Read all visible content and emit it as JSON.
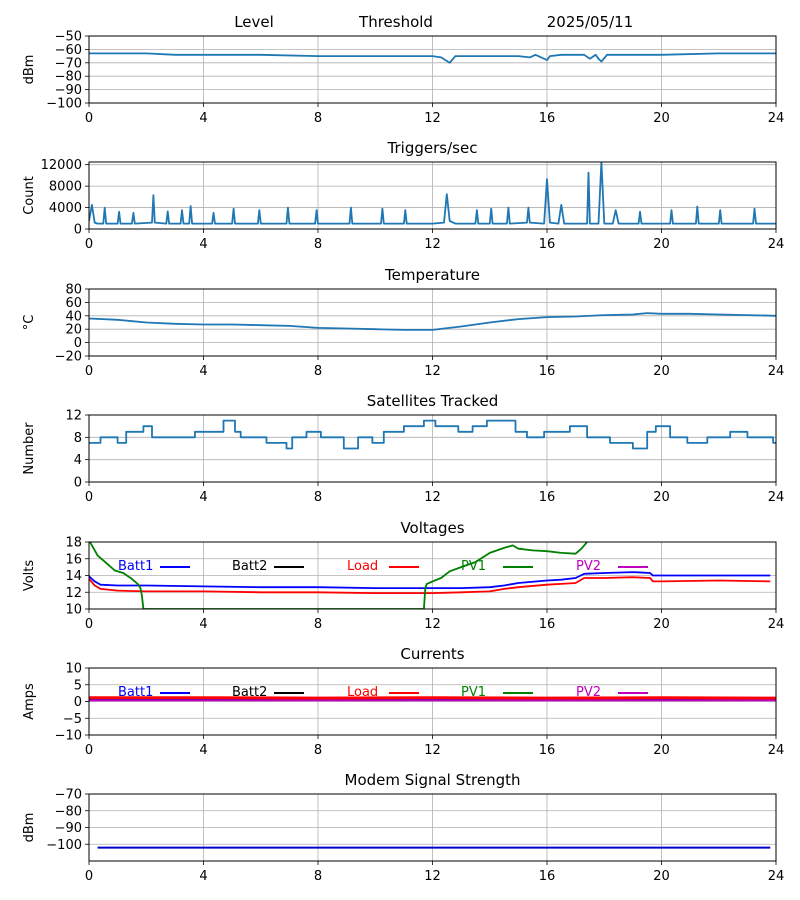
{
  "figure": {
    "header": {
      "left": "Level",
      "middle": "Threshold",
      "right": "2025/05/11"
    }
  },
  "chart_data": [
    {
      "id": "level",
      "type": "line",
      "title": "",
      "xlabel": "",
      "ylabel": "dBm",
      "xlim": [
        0,
        24
      ],
      "ylim": [
        -100,
        -50
      ],
      "xticks": [
        "0",
        "4",
        "8",
        "12",
        "16",
        "20",
        "24"
      ],
      "yticks": [
        "−100",
        "−90",
        "−80",
        "−70",
        "−60",
        "−50"
      ],
      "grid": true,
      "series": [
        {
          "color": "#1f77b4",
          "x": [
            0.0,
            1.0,
            2.0,
            3.0,
            4.0,
            6.0,
            8.0,
            10.0,
            12.0,
            12.3,
            12.6,
            12.8,
            13.5,
            15.0,
            15.4,
            15.6,
            16.0,
            16.1,
            16.5,
            17.0,
            17.3,
            17.5,
            17.7,
            17.8,
            17.9,
            18.1,
            18.5,
            20.0,
            22.0,
            24.0
          ],
          "y": [
            -63,
            -63,
            -63,
            -64,
            -64,
            -64,
            -65,
            -65,
            -65,
            -66,
            -70,
            -65,
            -65,
            -65,
            -66,
            -64,
            -68,
            -65,
            -64,
            -64,
            -64,
            -67,
            -64,
            -67,
            -69,
            -64,
            -64,
            -64,
            -63,
            -63
          ]
        }
      ]
    },
    {
      "id": "triggers",
      "type": "line",
      "title": "Triggers/sec",
      "xlabel": "",
      "ylabel": "Count",
      "xlim": [
        0,
        24
      ],
      "ylim": [
        0,
        12500
      ],
      "xticks": [
        "0",
        "4",
        "8",
        "12",
        "16",
        "20",
        "24"
      ],
      "yticks": [
        "0",
        "4000",
        "8000",
        "12000"
      ],
      "grid": true,
      "series": [
        {
          "color": "#1f77b4",
          "x": [
            0.0,
            0.1,
            0.2,
            0.3,
            0.5,
            0.55,
            0.6,
            1.0,
            1.05,
            1.1,
            1.5,
            1.55,
            1.6,
            2.2,
            2.25,
            2.3,
            2.7,
            2.75,
            2.8,
            3.2,
            3.25,
            3.3,
            3.5,
            3.55,
            3.6,
            4.3,
            4.35,
            4.4,
            5.0,
            5.05,
            5.1,
            5.9,
            5.95,
            6.0,
            6.9,
            6.95,
            7.0,
            7.9,
            7.95,
            8.0,
            9.1,
            9.15,
            9.2,
            10.2,
            10.25,
            10.3,
            11.0,
            11.05,
            11.1,
            12.0,
            12.4,
            12.5,
            12.6,
            12.8,
            13.0,
            13.5,
            13.55,
            13.6,
            14.0,
            14.05,
            14.1,
            14.6,
            14.65,
            14.7,
            15.3,
            15.35,
            15.4,
            15.9,
            16.0,
            16.1,
            16.4,
            16.5,
            16.6,
            17.4,
            17.45,
            17.5,
            17.8,
            17.9,
            18.0,
            18.3,
            18.4,
            18.5,
            19.2,
            19.25,
            19.3,
            20.3,
            20.35,
            20.4,
            21.2,
            21.25,
            21.3,
            22.0,
            22.05,
            22.1,
            23.2,
            23.25,
            23.3,
            24.0
          ],
          "y": [
            1500,
            4500,
            1200,
            1000,
            1000,
            4000,
            1000,
            1000,
            3200,
            1000,
            1000,
            3000,
            1000,
            1200,
            6300,
            1200,
            1000,
            3300,
            1000,
            1000,
            3500,
            1000,
            1000,
            4300,
            1000,
            1000,
            3000,
            1000,
            1000,
            3800,
            1000,
            1000,
            3500,
            1000,
            1000,
            4000,
            1000,
            1000,
            3500,
            1000,
            1000,
            4000,
            1000,
            1000,
            3800,
            1000,
            1000,
            3500,
            1000,
            1000,
            1200,
            6500,
            1500,
            1000,
            1000,
            1000,
            3500,
            1000,
            1000,
            3800,
            1000,
            1000,
            4000,
            1000,
            1200,
            4000,
            1200,
            1000,
            9300,
            1200,
            1000,
            4500,
            1000,
            1000,
            10500,
            1000,
            1000,
            12500,
            1000,
            1000,
            3500,
            1000,
            1000,
            3200,
            1000,
            1000,
            3500,
            1000,
            1000,
            4200,
            1000,
            1000,
            3500,
            1000,
            1000,
            3800,
            1000,
            1000
          ]
        }
      ]
    },
    {
      "id": "temperature",
      "type": "line",
      "title": "Temperature",
      "xlabel": "",
      "ylabel": "°C",
      "xlim": [
        0,
        24
      ],
      "ylim": [
        -20,
        80
      ],
      "xticks": [
        "0",
        "4",
        "8",
        "12",
        "16",
        "20",
        "24"
      ],
      "yticks": [
        "−20",
        "0",
        "20",
        "40",
        "60",
        "80"
      ],
      "grid": true,
      "series": [
        {
          "color": "#1f77b4",
          "x": [
            0.0,
            1.0,
            2.0,
            3.0,
            4.0,
            5.0,
            6.0,
            7.0,
            8.0,
            9.0,
            10.0,
            11.0,
            12.0,
            13.0,
            14.0,
            15.0,
            16.0,
            17.0,
            18.0,
            19.0,
            19.5,
            20.0,
            21.0,
            22.0,
            23.0,
            24.0
          ],
          "y": [
            36,
            34,
            30,
            28,
            27,
            27,
            26,
            25,
            22,
            21,
            20,
            19,
            19,
            24,
            30,
            35,
            38,
            39,
            41,
            42,
            44,
            43,
            43,
            42,
            41,
            40
          ]
        }
      ]
    },
    {
      "id": "satellites",
      "type": "line",
      "title": "Satellites Tracked",
      "xlabel": "",
      "ylabel": "Number",
      "xlim": [
        0,
        24
      ],
      "ylim": [
        0,
        12
      ],
      "xticks": [
        "0",
        "4",
        "8",
        "12",
        "16",
        "20",
        "24"
      ],
      "yticks": [
        "0",
        "4",
        "8",
        "12"
      ],
      "grid": true,
      "series": [
        {
          "color": "#1f77b4",
          "x": [
            0.0,
            0.4,
            0.4,
            1.0,
            1.0,
            1.3,
            1.3,
            1.9,
            1.9,
            2.2,
            2.2,
            2.5,
            2.5,
            3.7,
            3.7,
            4.7,
            4.7,
            5.1,
            5.1,
            5.3,
            5.3,
            6.2,
            6.2,
            6.9,
            6.9,
            7.1,
            7.1,
            7.6,
            7.6,
            8.1,
            8.1,
            8.9,
            8.9,
            9.4,
            9.4,
            9.9,
            9.9,
            10.3,
            10.3,
            11.0,
            11.0,
            11.7,
            11.7,
            12.1,
            12.1,
            12.9,
            12.9,
            13.4,
            13.4,
            13.9,
            13.9,
            14.9,
            14.9,
            15.3,
            15.3,
            15.9,
            15.9,
            16.8,
            16.8,
            17.4,
            17.4,
            18.2,
            18.2,
            19.0,
            19.0,
            19.5,
            19.5,
            19.8,
            19.8,
            20.3,
            20.3,
            20.9,
            20.9,
            21.6,
            21.6,
            22.4,
            22.4,
            23.0,
            23.0,
            23.9,
            23.9,
            24.0
          ],
          "y": [
            7,
            7,
            8,
            8,
            7,
            7,
            9,
            9,
            10,
            10,
            8,
            8,
            8,
            8,
            9,
            9,
            11,
            11,
            9,
            9,
            8,
            8,
            7,
            7,
            6,
            6,
            8,
            8,
            9,
            9,
            8,
            8,
            6,
            6,
            8,
            8,
            7,
            7,
            9,
            9,
            10,
            10,
            11,
            11,
            10,
            10,
            9,
            9,
            10,
            10,
            11,
            11,
            9,
            9,
            8,
            8,
            9,
            9,
            10,
            10,
            8,
            8,
            7,
            7,
            6,
            6,
            9,
            9,
            10,
            10,
            8,
            8,
            7,
            7,
            8,
            8,
            9,
            9,
            8,
            8,
            7,
            7
          ]
        }
      ]
    },
    {
      "id": "voltages",
      "type": "line",
      "title": "Voltages",
      "xlabel": "",
      "ylabel": "Volts",
      "xlim": [
        0,
        24
      ],
      "ylim": [
        10,
        18
      ],
      "xticks": [
        "0",
        "4",
        "8",
        "12",
        "16",
        "20",
        "24"
      ],
      "yticks": [
        "10",
        "12",
        "14",
        "16",
        "18"
      ],
      "grid": true,
      "legend": "top",
      "series": [
        {
          "name": "Batt1",
          "color": "#0000ff",
          "x": [
            0.0,
            0.2,
            0.4,
            1.0,
            2.0,
            4.0,
            6.0,
            8.0,
            10.0,
            12.0,
            13.0,
            14.0,
            14.5,
            15.0,
            16.0,
            16.5,
            17.0,
            17.3,
            18.0,
            19.0,
            19.6,
            19.7,
            20.0,
            22.0,
            23.8
          ],
          "y": [
            13.9,
            13.3,
            12.9,
            12.8,
            12.8,
            12.7,
            12.6,
            12.6,
            12.5,
            12.5,
            12.5,
            12.6,
            12.8,
            13.1,
            13.4,
            13.5,
            13.7,
            14.2,
            14.3,
            14.4,
            14.3,
            14.0,
            14.0,
            14.0,
            14.0
          ]
        },
        {
          "name": "Batt2",
          "color": "#000000",
          "x": [],
          "y": []
        },
        {
          "name": "Load",
          "color": "#ff0000",
          "x": [
            0.0,
            0.2,
            0.4,
            1.0,
            2.0,
            4.0,
            6.0,
            8.0,
            10.0,
            11.5,
            12.0,
            13.0,
            14.0,
            14.5,
            15.0,
            16.0,
            16.5,
            17.0,
            17.3,
            18.0,
            19.0,
            19.6,
            19.7,
            20.0,
            22.0,
            23.8
          ],
          "y": [
            13.6,
            12.8,
            12.4,
            12.2,
            12.1,
            12.1,
            12.0,
            12.0,
            11.9,
            11.9,
            11.9,
            12.0,
            12.1,
            12.4,
            12.6,
            12.9,
            13.0,
            13.1,
            13.7,
            13.7,
            13.8,
            13.7,
            13.3,
            13.3,
            13.4,
            13.3
          ]
        },
        {
          "name": "PV1",
          "color": "#008000",
          "x": [
            0.0,
            0.3,
            0.6,
            0.9,
            1.2,
            1.5,
            1.7,
            1.8,
            1.85,
            1.9,
            11.7,
            11.75,
            11.8,
            12.0,
            12.3,
            12.6,
            13.0,
            13.5,
            14.0,
            14.5,
            14.8,
            15.0,
            15.5,
            16.0,
            16.5,
            17.0,
            17.2,
            17.4
          ],
          "y": [
            18.2,
            16.4,
            15.5,
            14.6,
            14.3,
            13.6,
            13.0,
            12.5,
            11.5,
            10.0,
            10.0,
            12.5,
            13.0,
            13.3,
            13.7,
            14.5,
            15.0,
            15.6,
            16.7,
            17.3,
            17.6,
            17.2,
            17.0,
            16.9,
            16.7,
            16.6,
            17.2,
            18.0
          ]
        },
        {
          "name": "PV2",
          "color": "#bf00bf",
          "x": [],
          "y": []
        }
      ]
    },
    {
      "id": "currents",
      "type": "line",
      "title": "Currents",
      "xlabel": "",
      "ylabel": "Amps",
      "xlim": [
        0,
        24
      ],
      "ylim": [
        -10,
        10
      ],
      "xticks": [
        "0",
        "4",
        "8",
        "12",
        "16",
        "20",
        "24"
      ],
      "yticks": [
        "−10",
        "−5",
        "0",
        "5",
        "10"
      ],
      "grid": true,
      "legend": "top",
      "series": [
        {
          "name": "Batt1",
          "color": "#0000ff",
          "x": [
            0.0,
            24.0
          ],
          "y": [
            0.6,
            0.6
          ]
        },
        {
          "name": "Batt2",
          "color": "#000000",
          "x": [],
          "y": []
        },
        {
          "name": "Load",
          "color": "#ff0000",
          "x": [
            0.0,
            4.0,
            8.0,
            12.0,
            16.0,
            20.0,
            24.0
          ],
          "y": [
            1.1,
            1.1,
            1.0,
            1.1,
            1.0,
            1.1,
            1.0
          ]
        },
        {
          "name": "PV1",
          "color": "#008000",
          "x": [],
          "y": []
        },
        {
          "name": "PV2",
          "color": "#bf00bf",
          "x": [
            0.0,
            24.0
          ],
          "y": [
            0.3,
            0.3
          ]
        }
      ]
    },
    {
      "id": "modem",
      "type": "line",
      "title": "Modem Signal Strength",
      "xlabel": "",
      "ylabel": "dBm",
      "xlim": [
        0,
        24
      ],
      "ylim": [
        -110,
        -70
      ],
      "xticks": [
        "0",
        "4",
        "8",
        "12",
        "16",
        "20",
        "24"
      ],
      "yticks": [
        "−100",
        "−90",
        "−80",
        "−70"
      ],
      "grid": true,
      "series": [
        {
          "color": "#0000cc",
          "x": [
            0.3,
            23.8
          ],
          "y": [
            -102,
            -102
          ]
        }
      ]
    }
  ]
}
